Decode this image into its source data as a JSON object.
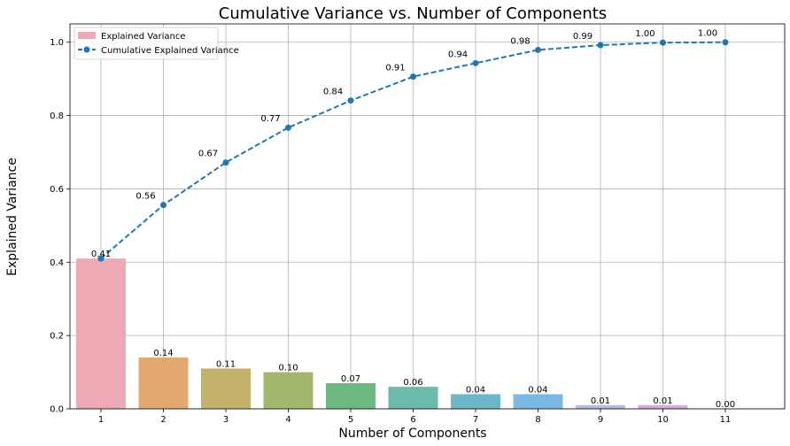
{
  "chart_data": {
    "type": "bar",
    "title": "Cumulative Variance vs. Number of Components",
    "xlabel": "Number of Components",
    "ylabel": "Explained Variance",
    "categories": [
      "1",
      "2",
      "3",
      "4",
      "5",
      "6",
      "7",
      "8",
      "9",
      "10",
      "11"
    ],
    "ylim": [
      0,
      1.05
    ],
    "yticks": [
      "0.0",
      "0.2",
      "0.4",
      "0.6",
      "0.8",
      "1.0"
    ],
    "grid": true,
    "legend_position": "top-left",
    "series": [
      {
        "name": "Explained Variance",
        "type": "bar",
        "values": [
          0.41,
          0.14,
          0.11,
          0.1,
          0.07,
          0.06,
          0.04,
          0.04,
          0.01,
          0.01,
          0.0
        ],
        "labels": [
          "0.41",
          "0.14",
          "0.11",
          "0.10",
          "0.07",
          "0.06",
          "0.04",
          "0.04",
          "0.01",
          "0.01",
          "0.00"
        ],
        "colors": [
          "#eeaab4",
          "#e2a86f",
          "#c4b16a",
          "#a3b86e",
          "#6cba80",
          "#6cbaaa",
          "#6cb8c8",
          "#7bbae0",
          "#b7b9ee",
          "#dba8e6",
          "#eaa8cc"
        ]
      },
      {
        "name": "Cumulative Explained Variance",
        "type": "line",
        "values": [
          0.41,
          0.556,
          0.672,
          0.767,
          0.841,
          0.906,
          0.943,
          0.979,
          0.992,
          0.999,
          1.0
        ],
        "labels": [
          "0.41",
          "0.56",
          "0.67",
          "0.77",
          "0.84",
          "0.91",
          "0.94",
          "0.98",
          "0.99",
          "1.00",
          "1.00"
        ],
        "color": "#1f77b4"
      }
    ]
  }
}
